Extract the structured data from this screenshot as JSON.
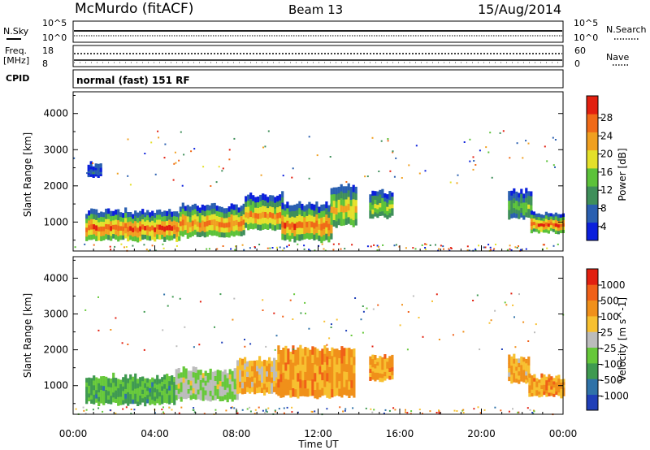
{
  "header": {
    "station": "McMurdo (fitACF)",
    "beam": "Beam 13",
    "date": "15/Aug/2014"
  },
  "top_panels": {
    "nsky_label": "N.Sky",
    "nsky_ticks": [
      "10^5",
      "10^0"
    ],
    "nsearch_label": "N.Search",
    "nsearch_ticks": [
      "10^5",
      "10^0"
    ],
    "freq_label": "Freq.",
    "freq_unit": "[MHz]",
    "freq_ticks": [
      "18",
      "8"
    ],
    "nave_label": "Nave",
    "nave_ticks": [
      "60",
      "0"
    ],
    "cpid_label": "CPID",
    "cpid_value": "normal (fast) 151 RF"
  },
  "chart_data": [
    {
      "type": "heatmap",
      "name": "power",
      "ylabel": "Slant Range [km]",
      "ylim": [
        200,
        4600
      ],
      "yticks": [
        1000,
        2000,
        3000,
        4000
      ],
      "xlim": [
        0,
        24
      ],
      "colorbar": {
        "label": "Power [dB]",
        "range": [
          0,
          32
        ],
        "ticks": [
          "28",
          "24",
          "20",
          "16",
          "12",
          "8",
          "4"
        ],
        "colors": [
          "#0b1fdc",
          "#2a5fb0",
          "#3f8f5a",
          "#5cc23a",
          "#e4e02a",
          "#f0a020",
          "#f06a18",
          "#e22010"
        ]
      },
      "patches": [
        {
          "t0": 0.6,
          "t1": 5.2,
          "r0": 500,
          "r1": 1300,
          "level": 0.92
        },
        {
          "t0": 5.2,
          "t1": 8.4,
          "r0": 600,
          "r1": 1450,
          "level": 0.85
        },
        {
          "t0": 8.4,
          "t1": 10.2,
          "r0": 800,
          "r1": 1750,
          "level": 0.8
        },
        {
          "t0": 10.2,
          "t1": 12.6,
          "r0": 500,
          "r1": 1500,
          "level": 0.88
        },
        {
          "t0": 12.6,
          "t1": 13.8,
          "r0": 900,
          "r1": 2000,
          "level": 0.7
        },
        {
          "t0": 14.5,
          "t1": 15.6,
          "r0": 1150,
          "r1": 1850,
          "level": 0.55
        },
        {
          "t0": 21.3,
          "t1": 22.4,
          "r0": 1100,
          "r1": 1850,
          "level": 0.45
        },
        {
          "t0": 22.4,
          "t1": 24.0,
          "r0": 700,
          "r1": 1250,
          "level": 0.9
        },
        {
          "t0": 0.7,
          "t1": 1.3,
          "r0": 2250,
          "r1": 2600,
          "level": 0.15
        }
      ]
    },
    {
      "type": "heatmap",
      "name": "velocity",
      "ylabel": "Slant Range [km]",
      "xlabel": "Time UT",
      "ylim": [
        200,
        4600
      ],
      "yticks": [
        1000,
        2000,
        3000,
        4000
      ],
      "xlim": [
        0,
        24
      ],
      "xticks": [
        "00:00",
        "04:00",
        "08:00",
        "12:00",
        "16:00",
        "20:00",
        "00:00"
      ],
      "colorbar": {
        "label": "Velocity [m s^-1]",
        "ticks": [
          "1000",
          "500",
          "100",
          "25",
          "-25",
          "-100",
          "-500",
          "-1000"
        ],
        "colors": [
          "#1f3fb8",
          "#2f72a8",
          "#3f9a50",
          "#66c83a",
          "#bcbcbc",
          "#f7c030",
          "#f0901a",
          "#f06018",
          "#e22010"
        ]
      },
      "patches": [
        {
          "t0": 0.6,
          "t1": 5.0,
          "r0": 500,
          "r1": 1250,
          "level": 0.3
        },
        {
          "t0": 5.0,
          "t1": 8.0,
          "r0": 600,
          "r1": 1450,
          "level": 0.45
        },
        {
          "t0": 8.0,
          "t1": 10.0,
          "r0": 800,
          "r1": 1750,
          "level": 0.62
        },
        {
          "t0": 10.0,
          "t1": 13.8,
          "r0": 700,
          "r1": 2050,
          "level": 0.72
        },
        {
          "t0": 14.5,
          "t1": 15.6,
          "r0": 1150,
          "r1": 1800,
          "level": 0.72
        },
        {
          "t0": 21.3,
          "t1": 22.3,
          "r0": 1100,
          "r1": 1800,
          "level": 0.68
        },
        {
          "t0": 22.3,
          "t1": 24.0,
          "r0": 700,
          "r1": 1250,
          "level": 0.72
        }
      ]
    }
  ]
}
